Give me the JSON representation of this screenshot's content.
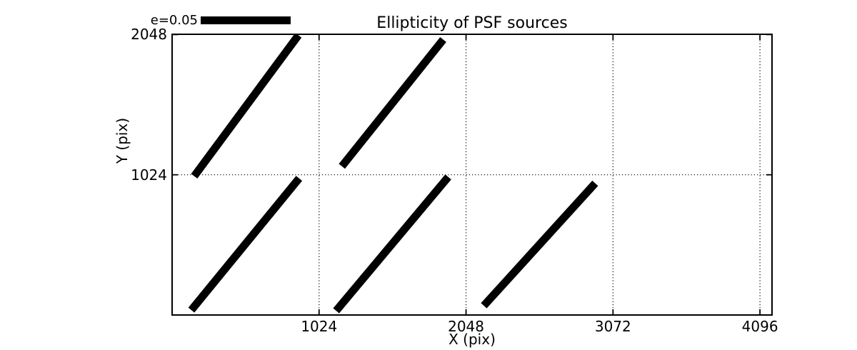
{
  "colors": {
    "foreground": "#000000",
    "background": "#ffffff"
  },
  "chart_data": {
    "type": "scatter",
    "subtype": "ellipticity-whisker-plot",
    "title": "Ellipticity of PSF sources",
    "xlabel": "X (pix)",
    "ylabel": "Y (pix)",
    "xlim": [
      0,
      4180
    ],
    "ylim": [
      0,
      2050
    ],
    "x_ticks": [
      1024,
      2048,
      3072,
      4096
    ],
    "y_ticks": [
      1024,
      2048
    ],
    "grid": "dotted",
    "legend": {
      "label": "e=0.05",
      "position": "upper-left-above-axes"
    },
    "whiskers": [
      {
        "x1": 154,
        "y1": 1014,
        "x2": 880,
        "y2": 2043
      },
      {
        "x1": 1183,
        "y1": 1086,
        "x2": 1889,
        "y2": 2011
      },
      {
        "x1": 134,
        "y1": 36,
        "x2": 885,
        "y2": 998
      },
      {
        "x1": 1143,
        "y1": 31,
        "x2": 1924,
        "y2": 1008
      },
      {
        "x1": 2172,
        "y1": 68,
        "x2": 2948,
        "y2": 962
      }
    ]
  }
}
